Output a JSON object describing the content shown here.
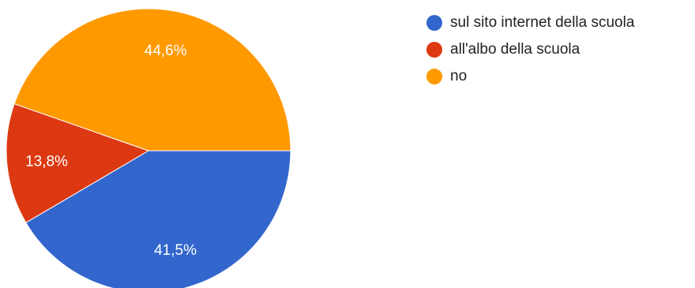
{
  "chart_data": {
    "type": "pie",
    "title": "",
    "categories": [
      "sul sito internet della scuola",
      "all'albo della scuola",
      "no"
    ],
    "values": [
      41.5,
      13.8,
      44.6
    ],
    "value_labels": [
      "41,5%",
      "13,8%",
      "44,6%"
    ],
    "colors": [
      "#3366cc",
      "#dc3912",
      "#ff9900"
    ],
    "start_angle_deg": 0,
    "direction": "clockwise",
    "legend_position": "right-top"
  }
}
